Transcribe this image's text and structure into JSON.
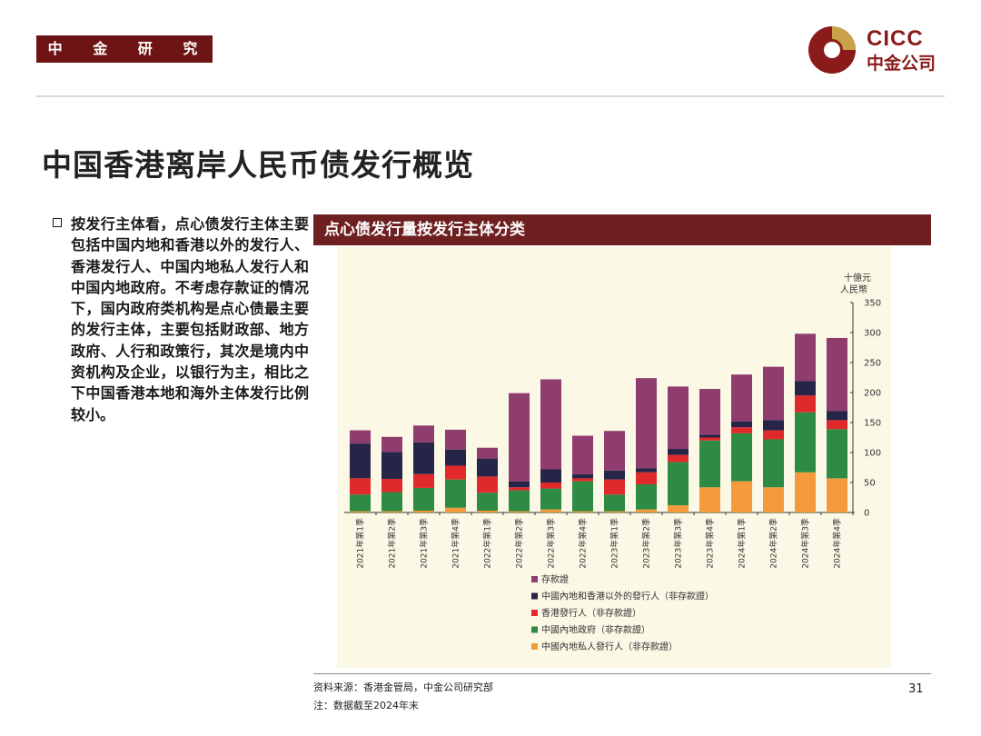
{
  "header": {
    "dept_tag": "中 金 研 究 部",
    "logo_en": "CICC",
    "logo_cn": "中金公司",
    "logo_icon": "cicc-logo-icon"
  },
  "page_title": "中国香港离岸人民币债发行概览",
  "bullet_text": "按发行主体看，点心债发行主体主要包括中国内地和香港以外的发行人、香港发行人、中国内地私人发行人和中国内地政府。不考虑存款证的情况下，国内政府类机构是点心债最主要的发行主体，主要包括财政部、地方政府、人行和政策行，其次是境内中资机构及企业，以银行为主，相比之下中国香港本地和海外主体发行比例较小。",
  "chart_header": "点心债发行量按发行主体分类",
  "footer": {
    "source": "资料来源：香港金管局，中金公司研究部",
    "note": "注：数据截至2024年末",
    "page_number": "31"
  },
  "chart_data": {
    "type": "bar",
    "stacked": true,
    "categories": [
      "2021年第1季",
      "2021年第2季",
      "2021年第3季",
      "2021年第4季",
      "2022年第1季",
      "2022年第2季",
      "2022年第3季",
      "2022年第4季",
      "2023年第1季",
      "2023年第2季",
      "2023年第3季",
      "2023年第4季",
      "2024年第1季",
      "2024年第2季",
      "2024年第3季",
      "2024年第4季"
    ],
    "ylabel": "十億元人民幣",
    "ylim": [
      0,
      350
    ],
    "yticks": [
      0,
      50,
      100,
      150,
      200,
      250,
      300,
      350
    ],
    "y_axis_position": "right",
    "legend_position": "bottom",
    "series": [
      {
        "name": "中國內地私人發行人（非存款證）",
        "color": "#f39a3a",
        "values": [
          2,
          2,
          3,
          8,
          3,
          2,
          5,
          2,
          2,
          5,
          12,
          42,
          52,
          42,
          67,
          57
        ]
      },
      {
        "name": "中國內地政府（非存款證）",
        "color": "#2e8b44",
        "values": [
          28,
          32,
          38,
          47,
          30,
          35,
          35,
          50,
          28,
          42,
          72,
          78,
          80,
          80,
          100,
          82
        ]
      },
      {
        "name": "香港發行人（非存款證）",
        "color": "#e0292b",
        "values": [
          27,
          22,
          23,
          23,
          27,
          5,
          10,
          5,
          25,
          20,
          12,
          5,
          10,
          15,
          28,
          15
        ]
      },
      {
        "name": "中國內地和香港以外的發行人（非存款證）",
        "color": "#262548",
        "values": [
          58,
          45,
          53,
          27,
          30,
          10,
          22,
          7,
          15,
          7,
          10,
          5,
          10,
          17,
          24,
          15
        ]
      },
      {
        "name": "存款證",
        "color": "#8f3c6e",
        "values": [
          22,
          25,
          28,
          33,
          18,
          147,
          150,
          64,
          66,
          150,
          104,
          76,
          78,
          89,
          79,
          122
        ]
      }
    ],
    "grid": false,
    "background": "#fbf8e6"
  }
}
